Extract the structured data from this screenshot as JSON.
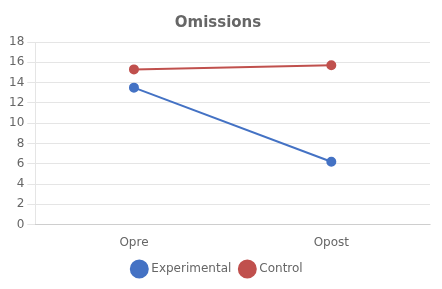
{
  "chart_data": {
    "type": "line",
    "title": "Omissions",
    "categories": [
      "Opre",
      "Opost"
    ],
    "series": [
      {
        "name": "Experimental",
        "color": "#4472C4",
        "values": [
          13.5,
          6.2
        ]
      },
      {
        "name": "Control",
        "color": "#C0504D",
        "values": [
          15.3,
          15.7
        ]
      }
    ],
    "ylim": [
      0,
      18
    ],
    "yticks": [
      0,
      2,
      4,
      6,
      8,
      10,
      12,
      14,
      16,
      18
    ],
    "grid": true,
    "legend": "bottom",
    "marker": "circle"
  }
}
